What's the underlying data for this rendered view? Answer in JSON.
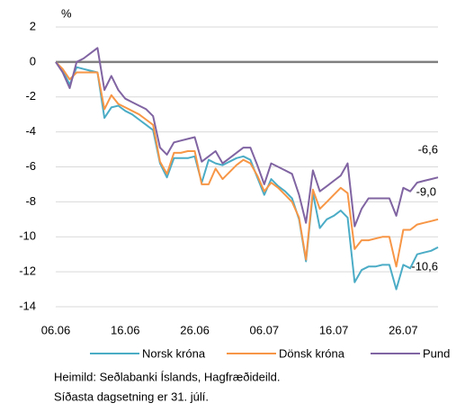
{
  "chart_data": {
    "type": "line",
    "y_label": "%",
    "categories": [
      "06.06",
      null,
      null,
      null,
      null,
      null,
      null,
      null,
      null,
      null,
      "16.06",
      null,
      null,
      null,
      null,
      null,
      null,
      null,
      null,
      null,
      "26.06",
      null,
      null,
      null,
      null,
      null,
      null,
      null,
      null,
      null,
      "06.07",
      null,
      null,
      null,
      null,
      null,
      null,
      null,
      null,
      null,
      "16.07",
      null,
      null,
      null,
      null,
      null,
      null,
      null,
      null,
      null,
      "26.07",
      null,
      null,
      null,
      null,
      null
    ],
    "ylim": [
      -14,
      2
    ],
    "yticks": [
      2,
      0,
      -2,
      -4,
      -6,
      -8,
      -10,
      -12,
      -14
    ],
    "yticks_labels": [
      "2",
      "0",
      "-2",
      "-4",
      "-6",
      "-8",
      "-10",
      "-12",
      "-14"
    ],
    "grid": true,
    "series": [
      {
        "name": "Norsk króna",
        "color": "#4bacc6",
        "last_label": "-10,6",
        "values": [
          0,
          -0.5,
          -1.3,
          -0.3,
          -0.4,
          -0.5,
          -0.6,
          -3.2,
          -2.6,
          -2.5,
          -2.8,
          -3.0,
          -3.3,
          -3.6,
          -3.9,
          -5.8,
          -6.6,
          -5.5,
          -5.5,
          -5.5,
          -5.4,
          -6.9,
          -5.6,
          -5.8,
          -5.9,
          -5.7,
          -5.5,
          -5.4,
          -5.6,
          -6.6,
          -7.6,
          -6.7,
          -7.1,
          -7.4,
          -7.8,
          -9.0,
          -11.4,
          -7.5,
          -9.5,
          -9.0,
          -8.8,
          -8.5,
          -8.9,
          -12.6,
          -11.9,
          -11.7,
          -11.7,
          -11.6,
          -11.6,
          -13.0,
          -11.6,
          -11.8,
          -11.0,
          -10.9,
          -10.8,
          -10.6
        ]
      },
      {
        "name": "Dönsk króna",
        "color": "#f79646",
        "last_label": "-9,0",
        "values": [
          0,
          -0.4,
          -1.0,
          -0.6,
          -0.6,
          -0.6,
          -0.6,
          -2.7,
          -1.9,
          -2.4,
          -2.6,
          -2.8,
          -3.0,
          -3.3,
          -3.6,
          -5.7,
          -6.4,
          -5.2,
          -5.2,
          -5.1,
          -5.1,
          -7.0,
          -7.0,
          -6.1,
          -6.7,
          -6.3,
          -5.9,
          -5.6,
          -5.8,
          -6.5,
          -7.4,
          -6.9,
          -7.2,
          -7.6,
          -8.0,
          -8.9,
          -11.3,
          -7.3,
          -8.4,
          -8.0,
          -7.6,
          -7.2,
          -7.5,
          -10.7,
          -10.2,
          -10.2,
          -10.1,
          -10.0,
          -10.0,
          -11.7,
          -9.6,
          -9.6,
          -9.3,
          -9.2,
          -9.1,
          -9.0
        ]
      },
      {
        "name": "Pund",
        "color": "#8064a2",
        "last_label": "-6,6",
        "values": [
          0,
          -0.6,
          -1.5,
          0.0,
          0.2,
          0.5,
          0.8,
          -1.6,
          -0.8,
          -1.6,
          -2.1,
          -2.3,
          -2.5,
          -2.7,
          -3.1,
          -4.9,
          -5.3,
          -4.6,
          -4.5,
          -4.4,
          -4.3,
          -5.7,
          -5.4,
          -5.1,
          -5.8,
          -5.5,
          -5.2,
          -4.9,
          -4.9,
          -5.9,
          -7.0,
          -5.8,
          -6.0,
          -6.2,
          -6.4,
          -7.6,
          -9.2,
          -6.2,
          -7.4,
          -7.1,
          -6.8,
          -6.5,
          -5.8,
          -9.4,
          -8.4,
          -7.8,
          -7.8,
          -7.8,
          -7.8,
          -8.8,
          -7.2,
          -7.4,
          -6.9,
          -6.8,
          -6.7,
          -6.6
        ]
      }
    ],
    "notes": [
      "Heimild: Seðlabanki Íslands, Hagfræðideild.",
      "Síðasta dagsetning er 31. júlí."
    ]
  }
}
